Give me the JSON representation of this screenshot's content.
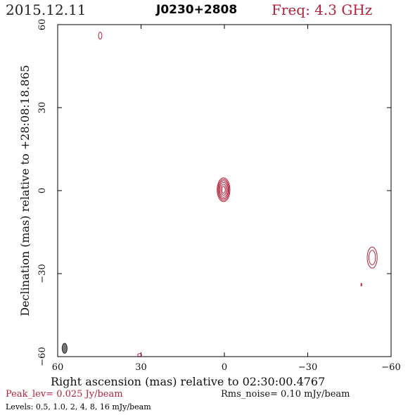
{
  "header": {
    "date": "2015.12.11",
    "source": "J0230+2808",
    "frequency": "Freq: 4.3 GHz"
  },
  "footer": {
    "peak": "Peak_lev=  0.025 Jy/beam",
    "rms": "Rms_noise= 0.10 mJy/beam",
    "levels": "Levels: 0.5, 1.0,    2,    4,    8,   16 mJy/beam"
  },
  "colors": {
    "contour": "#b2223d",
    "beam": "#777777",
    "frame": "#000000"
  },
  "chart_data": {
    "type": "contour",
    "xlabel": "Right ascension (mas) relative to 02:30:00.4767",
    "ylabel": "Declination (mas) relative to +28:08:18.865",
    "xlim": [
      60,
      -60
    ],
    "ylim": [
      -60,
      60
    ],
    "xticks": [
      60,
      30,
      0,
      -30,
      -60
    ],
    "yticks": [
      -60,
      -30,
      0,
      30,
      60
    ],
    "xtick_labels": [
      "60",
      "30",
      "0",
      "−30",
      "−60"
    ],
    "ytick_labels": [
      "−60",
      "−30",
      "0",
      "30",
      "60"
    ],
    "contour_levels_mJy": [
      0.5,
      1.0,
      2,
      4,
      8,
      16
    ],
    "components": [
      {
        "x": 0.3,
        "y": 0.3,
        "levels": [
          {
            "rx": 2.3,
            "ry": 4.3
          },
          {
            "rx": 2.0,
            "ry": 3.8
          },
          {
            "rx": 1.7,
            "ry": 3.3
          },
          {
            "rx": 1.4,
            "ry": 2.7
          },
          {
            "rx": 1.0,
            "ry": 2.0
          },
          {
            "rx": 0.6,
            "ry": 1.3
          }
        ]
      },
      {
        "x": -53.2,
        "y": -24.2,
        "levels": [
          {
            "rx": 1.8,
            "ry": 3.8
          },
          {
            "rx": 1.2,
            "ry": 2.6
          }
        ]
      },
      {
        "x": 44.7,
        "y": 56.0,
        "levels": [
          {
            "rx": 0.6,
            "ry": 1.3
          }
        ]
      },
      {
        "x": 30.5,
        "y": -59.4,
        "levels": [
          {
            "rx": 0.7,
            "ry": 0.5
          }
        ]
      },
      {
        "x": -49.3,
        "y": -34.0,
        "levels": [
          {
            "rx": 0.15,
            "ry": 0.5
          }
        ]
      }
    ],
    "beam": {
      "x": 57.5,
      "y": -57.0,
      "major": 3.6,
      "minor": 1.8
    }
  }
}
